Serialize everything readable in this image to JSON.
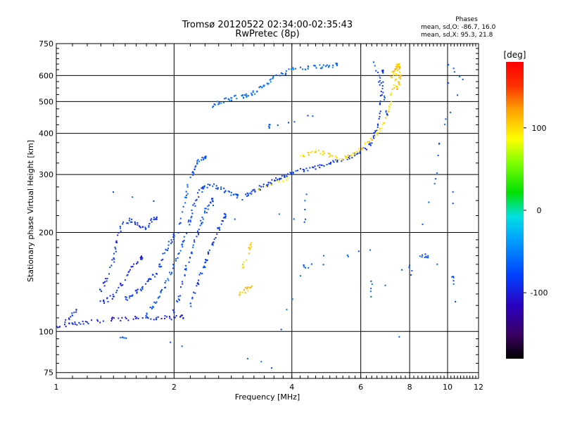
{
  "chart_data": {
    "type": "scatter",
    "title": "Tromsø 20120522 02:34:00-02:35:43",
    "subtitle": "RwPretec (8p)",
    "xlabel": "Frequency [MHz]",
    "ylabel": "Stationary phase Virtual Height [km]",
    "x_scale": "log",
    "y_scale": "log",
    "xlim": [
      1,
      12
    ],
    "ylim": [
      72,
      750
    ],
    "xticks": [
      1,
      2,
      4,
      6,
      8,
      10,
      12
    ],
    "yticks": [
      75,
      100,
      200,
      300,
      400,
      500,
      600,
      750
    ],
    "grid": true,
    "phases_box": {
      "title": "Phases",
      "line1": "mean, sd,O: -86.7, 16.0",
      "line2": "mean, sd,X:  95.3, 21.8"
    },
    "colorbar": {
      "label": "[deg]",
      "range": [
        -180,
        180
      ],
      "ticks": [
        100,
        0,
        -100
      ],
      "tick_labels": [
        "100",
        "0",
        "-100"
      ]
    },
    "series": [
      {
        "name": "",
        "color_by": "phase_deg",
        "traces": [
          {
            "points": [
              [
                1.0,
                103
              ],
              [
                1.05,
                105
              ],
              [
                1.1,
                105
              ],
              [
                1.15,
                106
              ],
              [
                1.2,
                107
              ],
              [
                1.3,
                108
              ],
              [
                1.4,
                109
              ],
              [
                1.5,
                109
              ],
              [
                1.6,
                110
              ],
              [
                1.7,
                110
              ],
              [
                1.8,
                110
              ],
              [
                1.9,
                110
              ],
              [
                2.0,
                110
              ],
              [
                2.1,
                111
              ]
            ],
            "phase": -95
          },
          {
            "points": [
              [
                1.05,
                107
              ],
              [
                1.08,
                110
              ],
              [
                1.1,
                113
              ],
              [
                1.12,
                116
              ]
            ],
            "phase": -90
          },
          {
            "points": [
              [
                1.3,
                122
              ],
              [
                1.35,
                125
              ],
              [
                1.4,
                128
              ],
              [
                1.45,
                135
              ],
              [
                1.5,
                145
              ],
              [
                1.55,
                155
              ],
              [
                1.6,
                162
              ],
              [
                1.65,
                168
              ]
            ],
            "phase": -90
          },
          {
            "points": [
              [
                1.3,
                133
              ],
              [
                1.33,
                140
              ],
              [
                1.36,
                150
              ],
              [
                1.4,
                165
              ],
              [
                1.42,
                180
              ],
              [
                1.45,
                200
              ],
              [
                1.48,
                213
              ],
              [
                1.55,
                218
              ],
              [
                1.6,
                213
              ],
              [
                1.65,
                205
              ],
              [
                1.7,
                205
              ],
              [
                1.75,
                218
              ],
              [
                1.8,
                222
              ]
            ],
            "phase": -88
          },
          {
            "points": [
              [
                1.5,
                125
              ],
              [
                1.55,
                128
              ],
              [
                1.6,
                132
              ],
              [
                1.65,
                135
              ],
              [
                1.7,
                140
              ],
              [
                1.75,
                145
              ],
              [
                1.8,
                150
              ],
              [
                1.85,
                160
              ],
              [
                1.9,
                175
              ],
              [
                1.95,
                185
              ],
              [
                2.0,
                195
              ]
            ],
            "phase": -85
          },
          {
            "points": [
              [
                1.7,
                112
              ],
              [
                1.75,
                118
              ],
              [
                1.8,
                123
              ],
              [
                1.85,
                130
              ],
              [
                1.9,
                138
              ],
              [
                1.95,
                148
              ],
              [
                2.0,
                158
              ],
              [
                2.05,
                170
              ],
              [
                2.1,
                185
              ],
              [
                2.15,
                200
              ],
              [
                2.2,
                220
              ],
              [
                2.25,
                240
              ],
              [
                2.3,
                260
              ],
              [
                2.35,
                270
              ],
              [
                2.4,
                275
              ],
              [
                2.5,
                278
              ],
              [
                2.6,
                275
              ],
              [
                2.7,
                268
              ],
              [
                2.8,
                262
              ],
              [
                2.9,
                258
              ]
            ],
            "phase": -75
          },
          {
            "points": [
              [
                2.05,
                200
              ],
              [
                2.1,
                230
              ],
              [
                2.15,
                260
              ],
              [
                2.2,
                290
              ],
              [
                2.25,
                310
              ],
              [
                2.3,
                325
              ],
              [
                2.35,
                335
              ],
              [
                2.4,
                340
              ]
            ],
            "phase": -70
          },
          {
            "points": [
              [
                2.0,
                115
              ],
              [
                2.05,
                125
              ],
              [
                2.1,
                140
              ],
              [
                2.15,
                155
              ],
              [
                2.2,
                170
              ],
              [
                2.25,
                185
              ],
              [
                2.3,
                200
              ],
              [
                2.35,
                215
              ],
              [
                2.4,
                228
              ],
              [
                2.45,
                240
              ],
              [
                2.5,
                250
              ]
            ],
            "phase": -80
          },
          {
            "points": [
              [
                2.2,
                120
              ],
              [
                2.25,
                130
              ],
              [
                2.3,
                140
              ],
              [
                2.35,
                150
              ],
              [
                2.4,
                160
              ],
              [
                2.45,
                172
              ],
              [
                2.5,
                182
              ],
              [
                2.55,
                192
              ],
              [
                2.6,
                205
              ],
              [
                2.65,
                215
              ],
              [
                2.7,
                225
              ]
            ],
            "phase": -82
          },
          {
            "points": [
              [
                3.0,
                255
              ],
              [
                3.1,
                262
              ],
              [
                3.2,
                268
              ],
              [
                3.3,
                273
              ],
              [
                3.4,
                278
              ],
              [
                3.5,
                283
              ],
              [
                3.6,
                288
              ],
              [
                3.7,
                292
              ],
              [
                3.8,
                296
              ],
              [
                3.9,
                300
              ],
              [
                4.0,
                304
              ],
              [
                4.2,
                308
              ],
              [
                4.4,
                312
              ],
              [
                4.6,
                316
              ],
              [
                4.8,
                320
              ],
              [
                5.0,
                324
              ],
              [
                5.2,
                328
              ],
              [
                5.4,
                333
              ],
              [
                5.6,
                338
              ],
              [
                5.8,
                344
              ],
              [
                6.0,
                352
              ],
              [
                6.2,
                362
              ],
              [
                6.4,
                378
              ],
              [
                6.5,
                395
              ],
              [
                6.6,
                420
              ],
              [
                6.7,
                460
              ],
              [
                6.75,
                500
              ],
              [
                6.8,
                560
              ],
              [
                6.85,
                620
              ]
            ],
            "phase": -85
          },
          {
            "points": [
              [
                3.3,
                270
              ],
              [
                3.5,
                278
              ],
              [
                3.7,
                285
              ],
              [
                3.9,
                290
              ]
            ],
            "phase": 90
          },
          {
            "points": [
              [
                4.2,
                340
              ],
              [
                4.4,
                348
              ],
              [
                4.6,
                355
              ],
              [
                4.8,
                350
              ],
              [
                5.0,
                342
              ],
              [
                5.2,
                335
              ],
              [
                5.4,
                335
              ],
              [
                5.6,
                340
              ],
              [
                5.8,
                350
              ],
              [
                6.0,
                360
              ],
              [
                6.2,
                372
              ],
              [
                6.4,
                385
              ],
              [
                6.6,
                400
              ],
              [
                6.8,
                420
              ],
              [
                7.0,
                450
              ],
              [
                7.1,
                480
              ],
              [
                7.2,
                520
              ],
              [
                7.3,
                560
              ],
              [
                7.4,
                600
              ],
              [
                7.5,
                640
              ]
            ],
            "phase": 100
          },
          {
            "points": [
              [
                2.5,
                480
              ],
              [
                2.6,
                495
              ],
              [
                2.7,
                505
              ],
              [
                2.8,
                510
              ],
              [
                2.9,
                515
              ],
              [
                3.0,
                520
              ],
              [
                3.1,
                525
              ],
              [
                3.2,
                530
              ],
              [
                3.3,
                545
              ],
              [
                3.4,
                560
              ],
              [
                3.5,
                575
              ],
              [
                3.6,
                590
              ],
              [
                3.8,
                610
              ],
              [
                4.0,
                625
              ],
              [
                4.2,
                630
              ],
              [
                4.4,
                632
              ],
              [
                4.6,
                635
              ],
              [
                4.8,
                638
              ],
              [
                5.0,
                640
              ],
              [
                5.2,
                645
              ]
            ],
            "phase": -60
          },
          {
            "points": [
              [
                6.5,
                650
              ],
              [
                6.6,
                620
              ],
              [
                6.7,
                580
              ],
              [
                6.8,
                540
              ],
              [
                6.9,
                500
              ],
              [
                7.0,
                460
              ]
            ],
            "phase": -75
          },
          {
            "points": [
              [
                7.2,
                600
              ],
              [
                7.3,
                620
              ],
              [
                7.4,
                640
              ],
              [
                7.5,
                650
              ],
              [
                7.55,
                630
              ],
              [
                7.6,
                600
              ],
              [
                7.5,
                570
              ],
              [
                7.4,
                550
              ]
            ],
            "phase": 110
          },
          {
            "points": [
              [
                3.1,
                175
              ],
              [
                3.12,
                180
              ],
              [
                3.15,
                185
              ],
              [
                3.05,
                165
              ],
              [
                3.0,
                158
              ]
            ],
            "phase": 105
          },
          {
            "points": [
              [
                3.0,
                132
              ],
              [
                3.05,
                134
              ],
              [
                3.1,
                135
              ],
              [
                3.15,
                136
              ],
              [
                2.95,
                131
              ]
            ],
            "phase": 110
          },
          {
            "points": [
              [
                1.45,
                95
              ],
              [
                1.5,
                96
              ],
              [
                3.55,
                78
              ],
              [
                4.3,
                158
              ],
              [
                4.5,
                158
              ],
              [
                6.3,
                178
              ],
              [
                6.4,
                128
              ],
              [
                8.5,
                168
              ],
              [
                8.8,
                170
              ],
              [
                10.3,
                145
              ],
              [
                10.5,
                122
              ],
              [
                10.0,
                640
              ],
              [
                11.0,
                585
              ],
              [
                9.5,
                375
              ],
              [
                9.3,
                280
              ],
              [
                7.5,
                95
              ],
              [
                1.4,
                262
              ],
              [
                4.3,
                215
              ],
              [
                4.5,
                450
              ],
              [
                3.5,
                420
              ]
            ],
            "phase": -70
          }
        ]
      }
    ]
  }
}
